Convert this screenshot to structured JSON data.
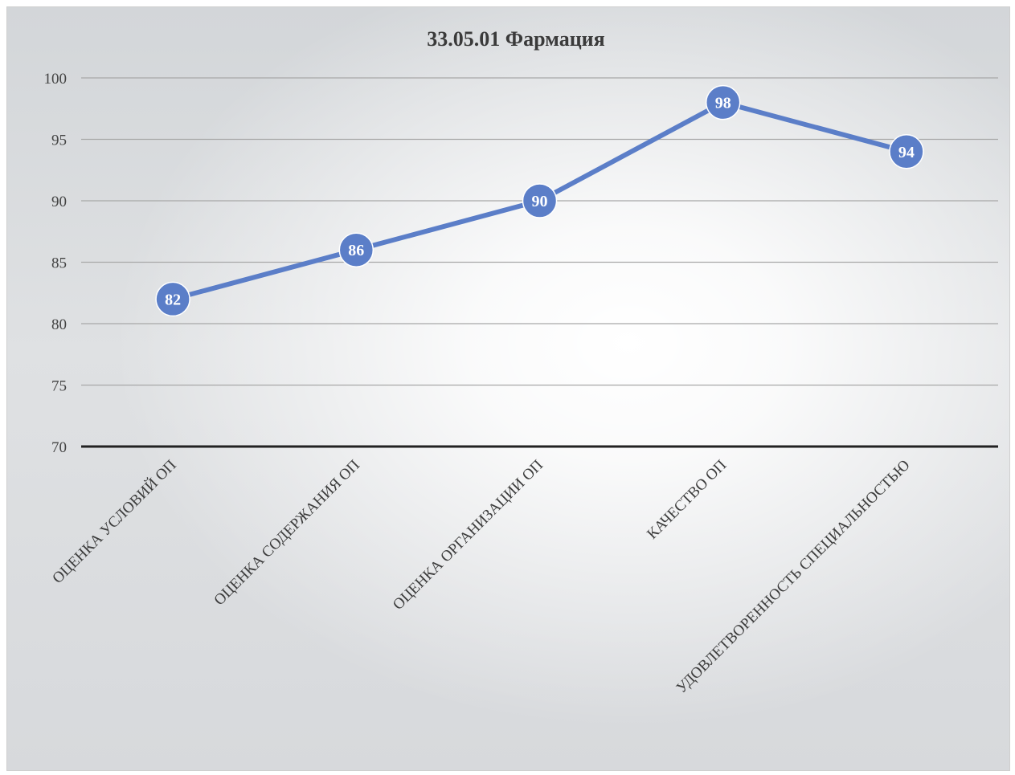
{
  "chart_data": {
    "type": "line",
    "title": "33.05.01 Фармация",
    "categories": [
      "ОЦЕНКА УСЛОВИЙ ОП",
      "ОЦЕНКА СОДЕРЖАНИЯ ОП",
      "ОЦЕНКА ОРГАНИЗАЦИИ ОП",
      "КАЧЕСТВО ОП",
      "УДОВЛЕТВОРЕННОСТЬ СПЕЦИАЛЬНОСТЬЮ"
    ],
    "series": [
      {
        "values": [
          82,
          86,
          90,
          98,
          94
        ]
      }
    ],
    "ylim": [
      70,
      100
    ],
    "yticks": [
      100,
      95,
      90,
      85,
      80,
      75,
      70
    ],
    "grid": true,
    "legend": "none",
    "colors": {
      "line": "#5b7ec8",
      "grid": "#a8a8a8",
      "axis": "#222222"
    }
  }
}
